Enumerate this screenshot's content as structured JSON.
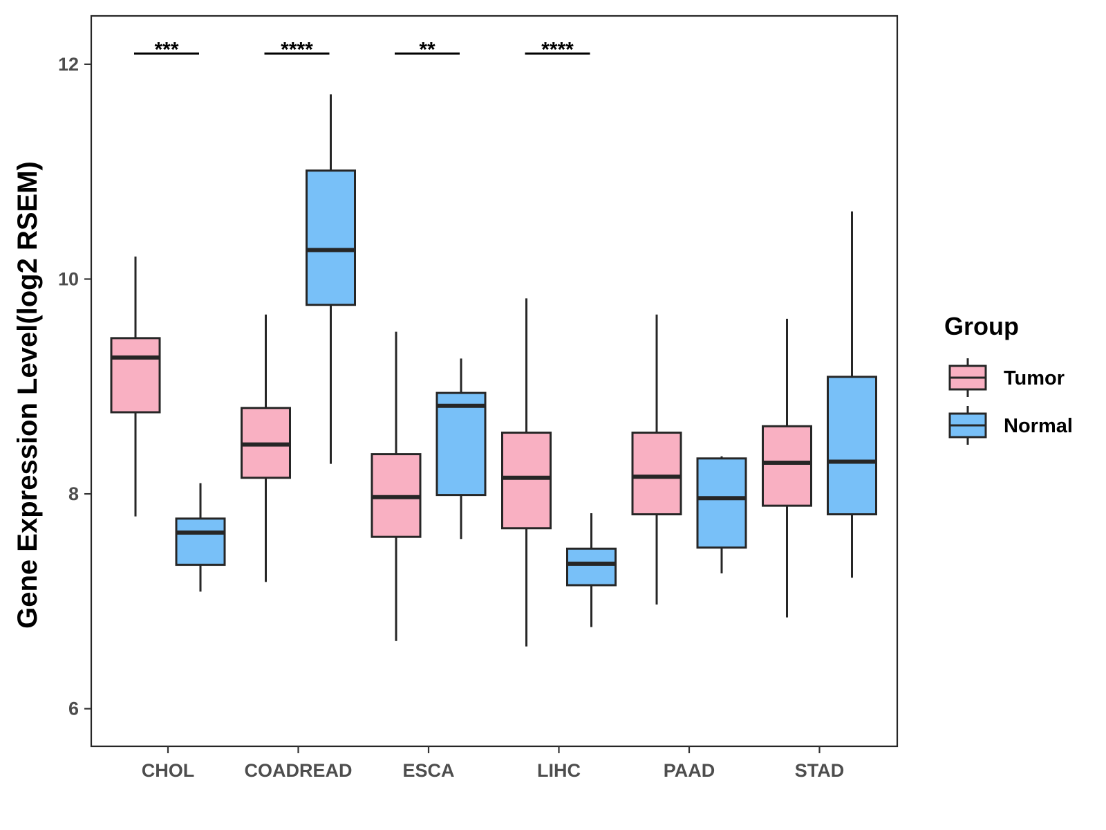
{
  "chart_data": {
    "type": "boxplot",
    "title": "",
    "xlabel": "",
    "ylabel": "Gene Expression Level(log2 RSEM)",
    "ylim": [
      5.65,
      12.45
    ],
    "y_ticks": [
      6,
      8,
      10,
      12
    ],
    "grid": false,
    "categories": [
      "CHOL",
      "COADREAD",
      "ESCA",
      "LIHC",
      "PAAD",
      "STAD"
    ],
    "legend": {
      "title": "Group",
      "position": "right",
      "entries": [
        "Tumor",
        "Normal"
      ]
    },
    "colors": {
      "Tumor": "#f9b0c2",
      "Normal": "#78c0f8",
      "stroke": "#262626"
    },
    "series": [
      {
        "name": "Tumor",
        "boxes": [
          {
            "category": "CHOL",
            "whisker_low": 7.79,
            "q1": 8.76,
            "median": 9.27,
            "q3": 9.45,
            "whisker_high": 10.21
          },
          {
            "category": "COADREAD",
            "whisker_low": 7.18,
            "q1": 8.15,
            "median": 8.46,
            "q3": 8.8,
            "whisker_high": 9.67
          },
          {
            "category": "ESCA",
            "whisker_low": 6.63,
            "q1": 7.6,
            "median": 7.97,
            "q3": 8.37,
            "whisker_high": 9.51
          },
          {
            "category": "LIHC",
            "whisker_low": 6.58,
            "q1": 7.68,
            "median": 8.15,
            "q3": 8.57,
            "whisker_high": 9.82
          },
          {
            "category": "PAAD",
            "whisker_low": 6.97,
            "q1": 7.81,
            "median": 8.16,
            "q3": 8.57,
            "whisker_high": 9.67
          },
          {
            "category": "STAD",
            "whisker_low": 6.85,
            "q1": 7.89,
            "median": 8.29,
            "q3": 8.63,
            "whisker_high": 9.63
          }
        ]
      },
      {
        "name": "Normal",
        "boxes": [
          {
            "category": "CHOL",
            "whisker_low": 7.09,
            "q1": 7.34,
            "median": 7.64,
            "q3": 7.77,
            "whisker_high": 8.1
          },
          {
            "category": "COADREAD",
            "whisker_low": 8.28,
            "q1": 9.76,
            "median": 10.27,
            "q3": 11.01,
            "whisker_high": 11.72
          },
          {
            "category": "ESCA",
            "whisker_low": 7.58,
            "q1": 7.99,
            "median": 8.82,
            "q3": 8.94,
            "whisker_high": 9.26
          },
          {
            "category": "LIHC",
            "whisker_low": 6.76,
            "q1": 7.15,
            "median": 7.35,
            "q3": 7.49,
            "whisker_high": 7.82
          },
          {
            "category": "PAAD",
            "whisker_low": 7.26,
            "q1": 7.5,
            "median": 7.96,
            "q3": 8.33,
            "whisker_high": 8.35
          },
          {
            "category": "STAD",
            "whisker_low": 7.22,
            "q1": 7.81,
            "median": 8.3,
            "q3": 9.09,
            "whisker_high": 10.63
          }
        ]
      }
    ],
    "significance": [
      {
        "category": "CHOL",
        "label": "***",
        "y": 12.1
      },
      {
        "category": "COADREAD",
        "label": "****",
        "y": 12.1
      },
      {
        "category": "ESCA",
        "label": "**",
        "y": 12.1
      },
      {
        "category": "LIHC",
        "label": "****",
        "y": 12.1
      }
    ]
  }
}
